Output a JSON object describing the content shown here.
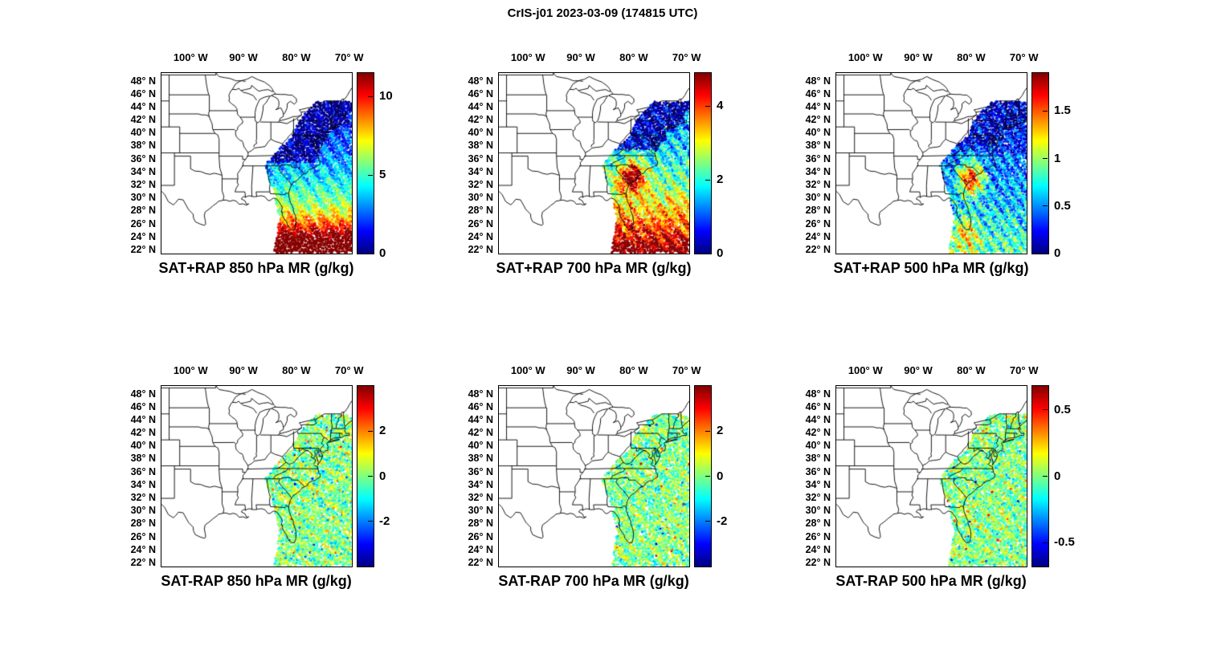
{
  "figure": {
    "title": "CrIS-j01 2023-03-09 (174815 UTC)"
  },
  "chart_data": {
    "type": "heatmap",
    "subtype": "satellite-sounding-swath-map-grid",
    "instrument": "CrIS-j01",
    "date": "2023-03-09",
    "time_utc": "174815",
    "colormap": "jet",
    "grid": {
      "rows": 2,
      "cols": 3
    },
    "map": {
      "region": "Central/eastern United States and western Atlantic",
      "lon_range": [
        -105.5,
        -69.5
      ],
      "lat_range": [
        21.5,
        49.3
      ],
      "lon_tick_values": [
        -100,
        -90,
        -80,
        -70
      ],
      "lon_tick_labels": [
        "100° W",
        "90° W",
        "80° W",
        "70° W"
      ],
      "lat_tick_values": [
        48,
        46,
        44,
        42,
        40,
        38,
        36,
        34,
        32,
        30,
        28,
        26,
        24,
        22
      ],
      "lat_tick_labels": [
        "48° N",
        "46° N",
        "44° N",
        "42° N",
        "40° N",
        "38° N",
        "36° N",
        "34° N",
        "32° N",
        "30° N",
        "28° N",
        "26° N",
        "24° N",
        "22° N"
      ]
    },
    "panels": [
      {
        "row": 0,
        "col": 0,
        "title": "SAT+RAP 850 hPa MR (g/kg)",
        "field": "SAT+RAP",
        "level_hPa": 850,
        "units": "g/kg",
        "color_axis": {
          "min": 0,
          "max": 11.5,
          "tick_values": [
            0,
            5,
            10
          ],
          "tick_labels": [
            "0",
            "5",
            "10"
          ]
        },
        "pattern": "8-11 g/kg (orange/red) south of about 27N near Florida and the Bahamas; 4-7 g/kg (green/yellow) from 27-32N; 2-4 g/kg (cyan/blue) over the mid-latitude Atlantic; under 1.5 g/kg (dark blue) over the Mid-Atlantic and Northeast US."
      },
      {
        "row": 0,
        "col": 1,
        "title": "SAT+RAP 700 hPa MR (g/kg)",
        "field": "SAT+RAP",
        "level_hPa": 700,
        "units": "g/kg",
        "color_axis": {
          "min": 0,
          "max": 4.9,
          "tick_values": [
            0,
            2,
            4
          ],
          "tick_labels": [
            "0",
            "2",
            "4"
          ]
        },
        "pattern": "Maximum above 4.5 g/kg (red) over the coastal Carolinas/Georgia and south of Florida; 1.5-3 g/kg (green) over the subtropical Atlantic; under 1 g/kg (dark blue) over the Northeast US."
      },
      {
        "row": 0,
        "col": 2,
        "title": "SAT+RAP 500 hPa MR (g/kg)",
        "field": "SAT+RAP",
        "level_hPa": 500,
        "units": "g/kg",
        "color_axis": {
          "min": 0,
          "max": 1.9,
          "tick_values": [
            0,
            0.5,
            1,
            1.5
          ],
          "tick_labels": [
            "0",
            "0.5",
            "1",
            "1.5"
          ]
        },
        "pattern": "Red band of 1.5-1.9 g/kg along the Carolinas/Georgia coastal plain; mottled 0.3-1.2 g/kg cyan/green/yellow over the Atlantic; dark blue patches east of New England."
      },
      {
        "row": 1,
        "col": 0,
        "title": "SAT-RAP 850 hPa MR (g/kg)",
        "field": "SAT-RAP",
        "level_hPa": 850,
        "units": "g/kg",
        "color_axis": {
          "min": -4,
          "max": 4,
          "tick_values": [
            -2,
            0,
            2
          ],
          "tick_labels": [
            "-2",
            "0",
            "2"
          ]
        },
        "pattern": "Satellite-minus-RAP differences mostly within plus/minus 1 g/kg (cyan/green) with scattered plus/minus 2-4 g/kg outliers and data gaps across the swath."
      },
      {
        "row": 1,
        "col": 1,
        "title": "SAT-RAP 700 hPa MR (g/kg)",
        "field": "SAT-RAP",
        "level_hPa": 700,
        "units": "g/kg",
        "color_axis": {
          "min": -4,
          "max": 4,
          "tick_values": [
            -2,
            0,
            2
          ],
          "tick_labels": [
            "-2",
            "0",
            "2"
          ]
        },
        "pattern": "Differences mostly within plus/minus 1 g/kg (cyan/green) with scattered plus/minus 2-4 g/kg outliers and data gaps."
      },
      {
        "row": 1,
        "col": 2,
        "title": "SAT-RAP 500 hPa MR (g/kg)",
        "field": "SAT-RAP",
        "level_hPa": 500,
        "units": "g/kg",
        "color_axis": {
          "min": -0.68,
          "max": 0.68,
          "tick_values": [
            -0.5,
            0,
            0.5
          ],
          "tick_labels": [
            "-0.5",
            "0",
            "0.5"
          ]
        },
        "pattern": "Differences mostly within plus/minus 0.3 g/kg (cyan/green) with scattered plus/minus 0.5-0.7 g/kg outliers."
      }
    ]
  }
}
